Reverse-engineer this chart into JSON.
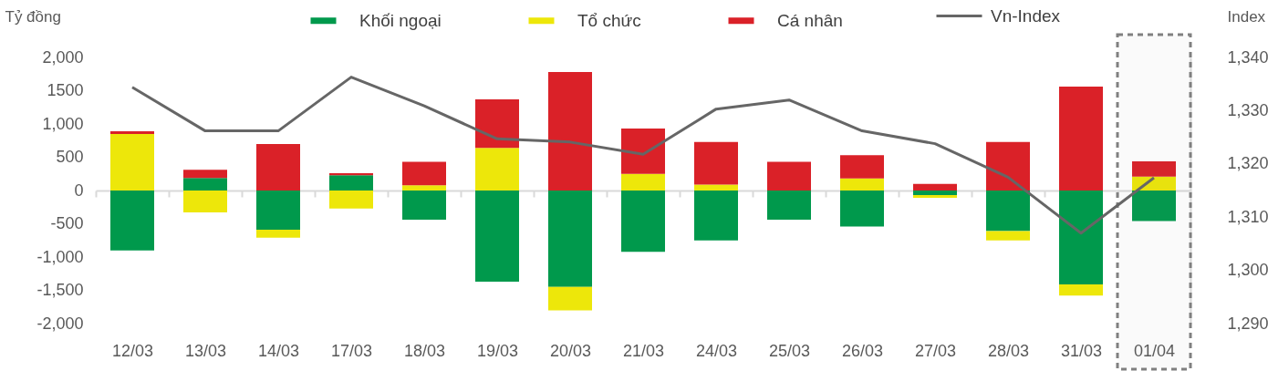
{
  "chart_data": {
    "type": "bar",
    "stacked": true,
    "ylabel": "Tỷ đồng",
    "y2label": "Index",
    "categories": [
      "12/03",
      "13/03",
      "14/03",
      "17/03",
      "18/03",
      "19/03",
      "20/03",
      "21/03",
      "24/03",
      "25/03",
      "26/03",
      "27/03",
      "28/03",
      "31/03",
      "01/04"
    ],
    "series": [
      {
        "name": "Khối ngoại",
        "color": "#00994c",
        "values": [
          -900,
          190,
          -590,
          230,
          -440,
          -1370,
          -1450,
          -920,
          -750,
          -440,
          -540,
          -70,
          -610,
          -1410,
          -460
        ]
      },
      {
        "name": "Tổ chức",
        "color": "#ede70a",
        "values": [
          850,
          -330,
          -120,
          -270,
          80,
          640,
          -350,
          250,
          90,
          0,
          180,
          -40,
          -140,
          -170,
          210
        ]
      },
      {
        "name": "Cá nhân",
        "color": "#da2128",
        "values": [
          40,
          120,
          700,
          30,
          350,
          730,
          1780,
          680,
          640,
          430,
          350,
          100,
          730,
          1560,
          230
        ]
      },
      {
        "name": "Vn-Index",
        "type": "line",
        "axis": "y2",
        "color": "#666666",
        "values": [
          1334.4,
          1326.2,
          1326.2,
          1336.3,
          1330.9,
          1324.7,
          1324.1,
          1321.8,
          1330.3,
          1332.0,
          1326.2,
          1323.8,
          1317.5,
          1307.0,
          1317.4
        ]
      }
    ],
    "ylim": [
      -2000,
      2000
    ],
    "yticks": [
      {
        "value": -2000,
        "label": "-2,000"
      },
      {
        "value": -1500,
        "label": "-1,500"
      },
      {
        "value": -1000,
        "label": "-1,000"
      },
      -500,
      0,
      500,
      {
        "value": 1000,
        "label": "1,000"
      },
      {
        "value": 1500,
        "label": "1500"
      },
      {
        "value": 2000,
        "label": "2,000"
      }
    ],
    "y2lim": [
      1290,
      1340
    ],
    "y2ticks": [
      {
        "value": 1290,
        "label": "1,290"
      },
      {
        "value": 1300,
        "label": "1,300"
      },
      {
        "value": 1310,
        "label": "1,310"
      },
      {
        "value": 1320,
        "label": "1,320"
      },
      {
        "value": 1330,
        "label": "1,330"
      },
      {
        "value": 1340,
        "label": "1,340"
      }
    ],
    "bands": [
      {
        "axis": "x",
        "from": "01/04",
        "to": "01/04",
        "color": "#808080"
      }
    ],
    "legend": "top"
  }
}
